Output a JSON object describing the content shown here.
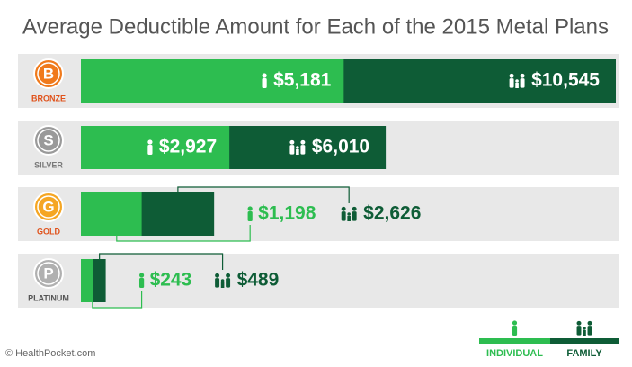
{
  "chart_data": {
    "type": "bar",
    "orientation": "horizontal",
    "overlay": true,
    "title": "Average Deductible Amount for Each of the 2015 Metal Plans",
    "categories": [
      "BRONZE",
      "SILVER",
      "GOLD",
      "PLATINUM"
    ],
    "badges": [
      "B",
      "S",
      "G",
      "P"
    ],
    "badge_colors": [
      "#f07a1c",
      "#9a9a9a",
      "#f5a623",
      "#b0b0b0"
    ],
    "category_colors": [
      "#e0521b",
      "#7a7a7a",
      "#e0521b",
      "#555555"
    ],
    "series": [
      {
        "name": "INDIVIDUAL",
        "color": "#2dbd50",
        "values": [
          5181,
          2927,
          1198,
          243
        ],
        "value_labels": [
          "$5,181",
          "$2,927",
          "$1,198",
          "$243"
        ]
      },
      {
        "name": "FAMILY",
        "color": "#0e5c36",
        "values": [
          10545,
          6010,
          2626,
          489
        ],
        "value_labels": [
          "$10,545",
          "$6,010",
          "$2,626",
          "$489"
        ]
      }
    ],
    "source": "© HealthPocket.com"
  }
}
